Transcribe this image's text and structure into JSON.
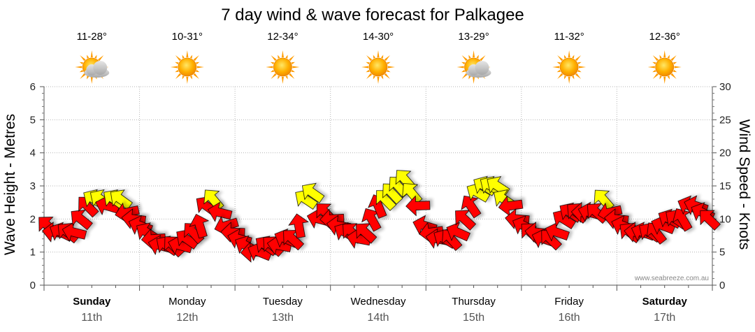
{
  "chart_data": {
    "type": "wind-wave-forecast",
    "title": "7 day wind & wave forecast for Palkagee",
    "ylabel_left": "Wave Height - Metres",
    "ylabel_right": "Wind Speed - Knots",
    "ylim_left": [
      0,
      6
    ],
    "ylim_right": [
      0,
      30
    ],
    "yticks_left": [
      "0",
      "1",
      "2",
      "3",
      "4",
      "5",
      "6"
    ],
    "yticks_right": [
      "0",
      "5",
      "10",
      "15",
      "20",
      "25",
      "30"
    ],
    "credit": "www.seabreeze.com.au",
    "days": [
      {
        "name": "Sunday",
        "date": "11th",
        "bold": true,
        "temp": "11-28°",
        "weather": "partly-cloudy-icon"
      },
      {
        "name": "Monday",
        "date": "12th",
        "bold": false,
        "temp": "10-31°",
        "weather": "sunny-icon"
      },
      {
        "name": "Tuesday",
        "date": "13th",
        "bold": false,
        "temp": "12-34°",
        "weather": "sunny-icon"
      },
      {
        "name": "Wednesday",
        "date": "14th",
        "bold": false,
        "temp": "14-30°",
        "weather": "sunny-icon"
      },
      {
        "name": "Thursday",
        "date": "15th",
        "bold": false,
        "temp": "13-29°",
        "weather": "partly-cloudy-icon"
      },
      {
        "name": "Friday",
        "date": "16th",
        "bold": false,
        "temp": "11-32°",
        "weather": "sunny-icon"
      },
      {
        "name": "Saturday",
        "date": "17th",
        "bold": true,
        "temp": "12-36°",
        "weather": "sunny-icon"
      }
    ],
    "wind_speed_knots": [
      9,
      8,
      8,
      8,
      8,
      10,
      12,
      13,
      13,
      12,
      13,
      13,
      11,
      10,
      9,
      8,
      7,
      6,
      6,
      6,
      6,
      7,
      8,
      9,
      12,
      13,
      11,
      9,
      8,
      7,
      6,
      5,
      5,
      6,
      6,
      6,
      7,
      7,
      9,
      13,
      14,
      10,
      11,
      10,
      9,
      8,
      8,
      7,
      8,
      10,
      12,
      13,
      14,
      15,
      16,
      14,
      12,
      9,
      8,
      7,
      7,
      7,
      8,
      10,
      12,
      14,
      15,
      15,
      15,
      13,
      12,
      10,
      9,
      8,
      8,
      7,
      7,
      8,
      10,
      11,
      11,
      11,
      11,
      11,
      13,
      11,
      10,
      9,
      8,
      8,
      8,
      8,
      8,
      9,
      10,
      10,
      10,
      12,
      12,
      11,
      10
    ],
    "wind_colors": [
      "#ff0000",
      "#ffff00"
    ],
    "wind_color_threshold_knots": 12.5
  }
}
